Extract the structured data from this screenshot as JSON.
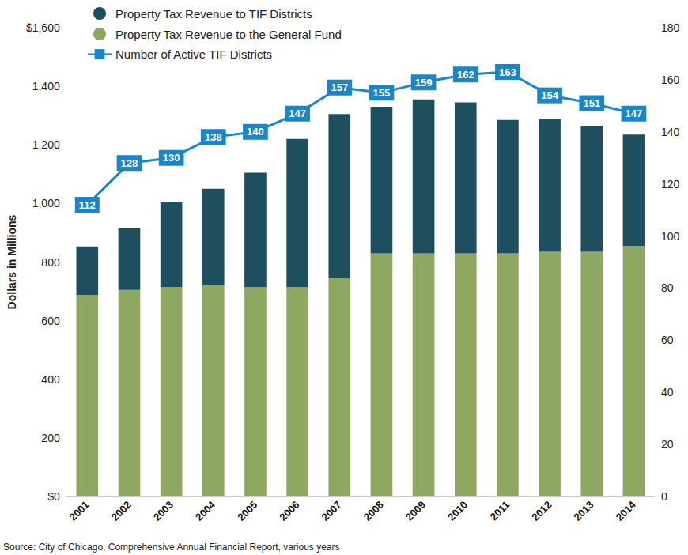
{
  "chart_data": {
    "type": "bar",
    "stacked": true,
    "categories": [
      "2001",
      "2002",
      "2003",
      "2004",
      "2005",
      "2006",
      "2007",
      "2008",
      "2009",
      "2010",
      "2011",
      "2012",
      "2013",
      "2014"
    ],
    "y_label": "Dollars in Millions",
    "source": "Source: City of Chicago, Comprehensive Annual Financial Report, various years",
    "ylim": [
      0,
      1600
    ],
    "yticks": [
      {
        "value": 0,
        "label": "$0"
      },
      200,
      400,
      600,
      800,
      {
        "value": 1000,
        "label": "1,000"
      },
      {
        "value": 1200,
        "label": "1,200"
      },
      {
        "value": 1400,
        "label": "1,400"
      },
      {
        "value": 1600,
        "label": "$1,600"
      }
    ],
    "y2lim": [
      0,
      180
    ],
    "y2ticks": [
      0,
      20,
      40,
      60,
      80,
      100,
      120,
      140,
      160,
      180
    ],
    "grid": false,
    "legend": "top-left",
    "series": [
      {
        "name": "Property Tax Revenue to TIF Districts",
        "type": "bar",
        "color": "#1e4f5f",
        "values": [
          165,
          210,
          290,
          330,
          390,
          505,
          560,
          500,
          525,
          515,
          455,
          455,
          430,
          380
        ]
      },
      {
        "name": "Property Tax Revenue to the General Fund",
        "type": "bar",
        "color": "#8ea861",
        "values": [
          688,
          705,
          715,
          720,
          715,
          715,
          745,
          830,
          830,
          830,
          830,
          835,
          835,
          855
        ]
      },
      {
        "name": "Number of Active TIF Districts",
        "type": "line",
        "axis": "y2",
        "color": "#1a85c8",
        "marker": "square",
        "data_labels": true,
        "values": [
          112,
          128,
          130,
          138,
          140,
          147,
          157,
          155,
          159,
          162,
          163,
          154,
          151,
          147
        ]
      }
    ]
  }
}
